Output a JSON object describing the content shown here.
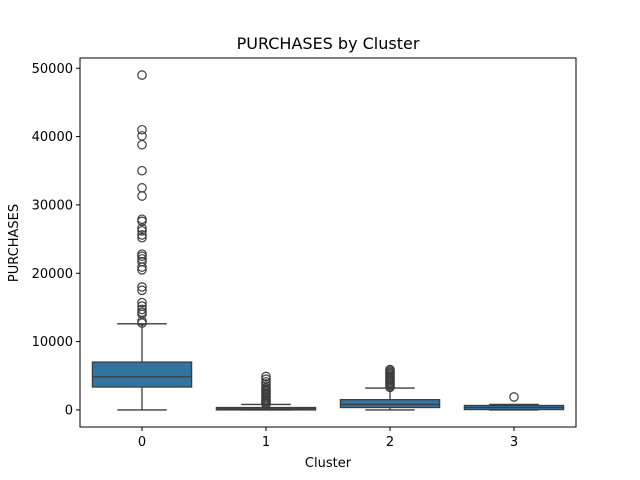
{
  "chart_data": {
    "type": "box",
    "title": "PURCHASES by Cluster",
    "xlabel": "Cluster",
    "ylabel": "PURCHASES",
    "categories": [
      "0",
      "1",
      "2",
      "3"
    ],
    "ylim": [
      -2500,
      51500
    ],
    "yticks": [
      0,
      10000,
      20000,
      30000,
      40000,
      50000
    ],
    "ytick_labels": [
      "0",
      "10000",
      "20000",
      "30000",
      "40000",
      "50000"
    ],
    "color": "#3274a1",
    "grid": false,
    "boxes": [
      {
        "category": "0",
        "whisker_low": 0,
        "q1": 3350,
        "median": 4850,
        "q3": 7000,
        "whisker_high": 12600,
        "outliers": [
          12700,
          13000,
          14000,
          14300,
          14700,
          15200,
          15700,
          17500,
          18000,
          20500,
          20900,
          21700,
          22100,
          22500,
          22800,
          25200,
          25600,
          26200,
          26600,
          27600,
          27900,
          31300,
          32500,
          35000,
          38800,
          40100,
          41000,
          49000
        ]
      },
      {
        "category": "1",
        "whisker_low": 0,
        "q1": 0,
        "median": 150,
        "q3": 350,
        "whisker_high": 800,
        "outliers": [
          850,
          1000,
          1200,
          1400,
          1600,
          1800,
          2000,
          2200,
          2400,
          2600,
          2800,
          3000,
          3200,
          3500,
          3800,
          4100,
          4500,
          4900
        ]
      },
      {
        "category": "2",
        "whisker_low": 0,
        "q1": 350,
        "median": 800,
        "q3": 1500,
        "whisker_high": 3200,
        "outliers": [
          3300,
          3500,
          3700,
          3900,
          4100,
          4300,
          4500,
          4700,
          4900,
          5100,
          5300,
          5500,
          5700,
          5900
        ]
      },
      {
        "category": "3",
        "whisker_low": 0,
        "q1": 50,
        "median": 350,
        "q3": 650,
        "whisker_high": 800,
        "outliers": [
          1900
        ]
      }
    ]
  }
}
